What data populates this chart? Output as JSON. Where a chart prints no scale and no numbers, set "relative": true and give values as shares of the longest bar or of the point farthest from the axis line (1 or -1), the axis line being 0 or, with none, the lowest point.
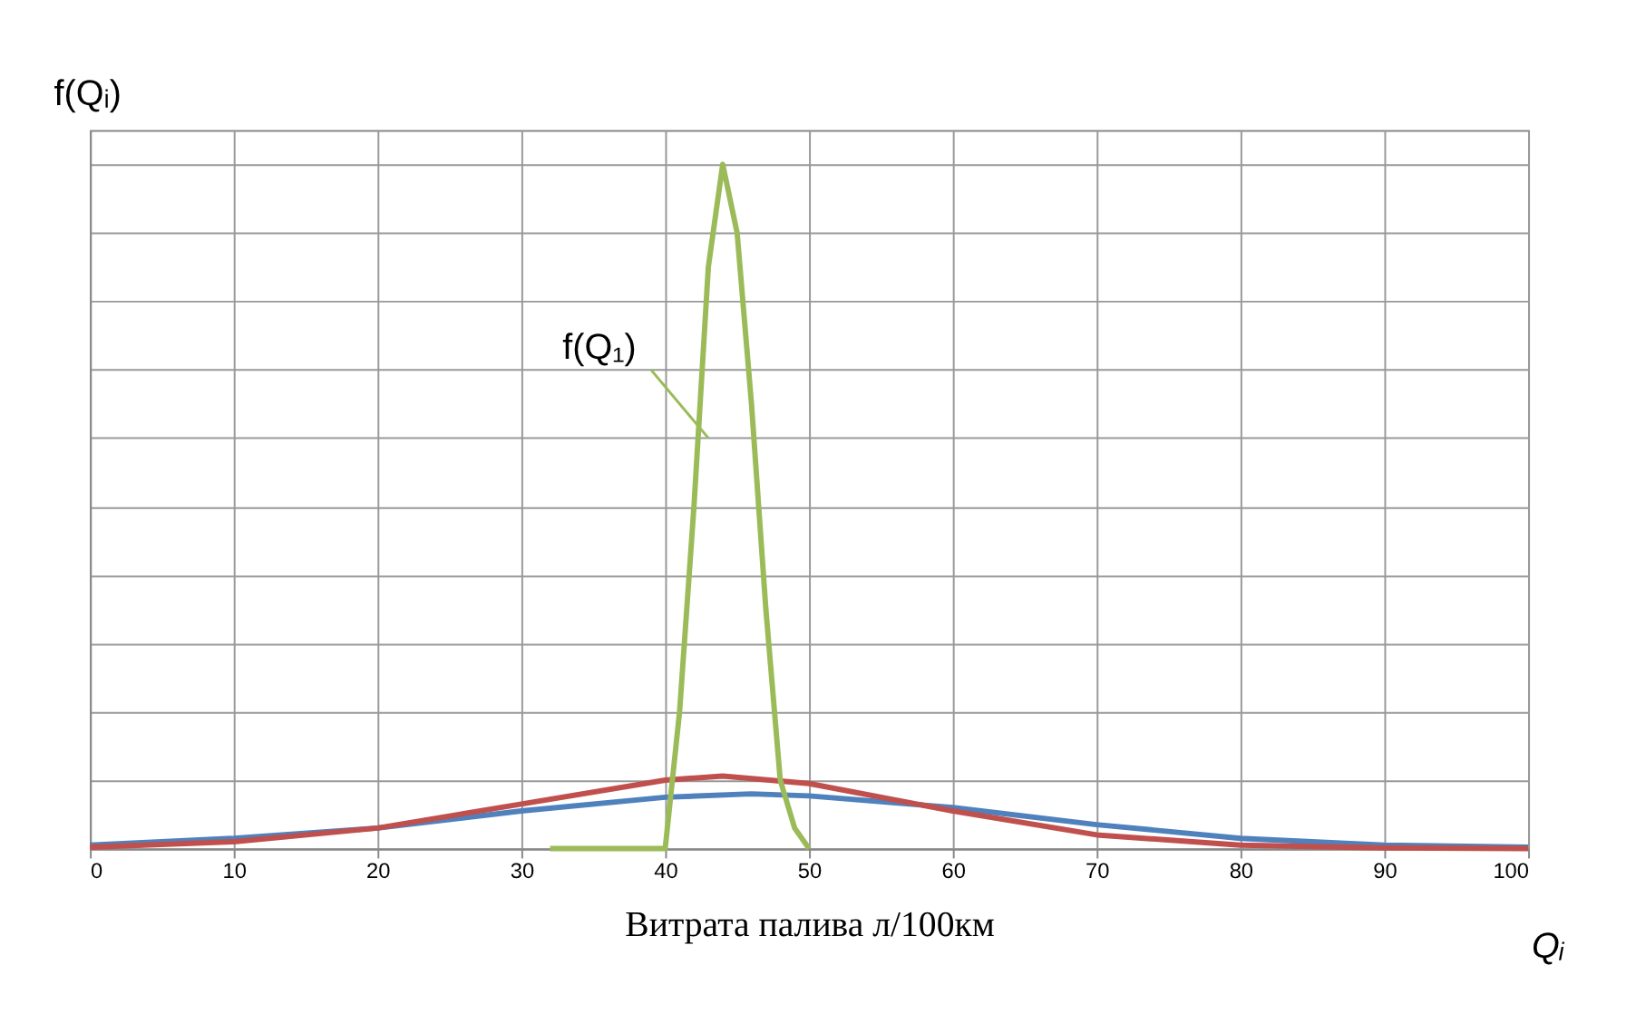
{
  "chart_data": {
    "type": "line",
    "relative": true,
    "ylabel": "f(Qᵢ)",
    "xlabel": "Витрата палива л/100км",
    "annotations": [
      {
        "text": "f(Q₁)",
        "x": 43,
        "y": 0.6
      },
      "Qᵢ"
    ],
    "xlim": [
      0,
      100
    ],
    "xticks": [
      0,
      10,
      20,
      30,
      40,
      50,
      60,
      70,
      80,
      90,
      100
    ],
    "grid": true,
    "line_style": "solid",
    "series": [
      {
        "color": "#4f81bd",
        "x": [
          0,
          10,
          20,
          30,
          40,
          46,
          50,
          60,
          70,
          80,
          90,
          100
        ],
        "values": [
          0.005,
          0.015,
          0.03,
          0.055,
          0.075,
          0.08,
          0.077,
          0.06,
          0.035,
          0.015,
          0.005,
          0.002
        ]
      },
      {
        "color": "#c0504d",
        "x": [
          0,
          10,
          20,
          30,
          40,
          44,
          50,
          60,
          70,
          80,
          90,
          100
        ],
        "values": [
          0.002,
          0.01,
          0.03,
          0.065,
          0.1,
          0.106,
          0.095,
          0.055,
          0.02,
          0.005,
          0.001,
          0
        ]
      },
      {
        "color": "#9bbb59",
        "x": [
          32,
          40,
          41,
          42,
          43,
          44,
          45,
          46,
          47,
          48,
          49,
          50
        ],
        "values": [
          0,
          0,
          0.2,
          0.5,
          0.85,
          1,
          0.9,
          0.65,
          0.35,
          0.1,
          0.03,
          0
        ]
      }
    ]
  }
}
